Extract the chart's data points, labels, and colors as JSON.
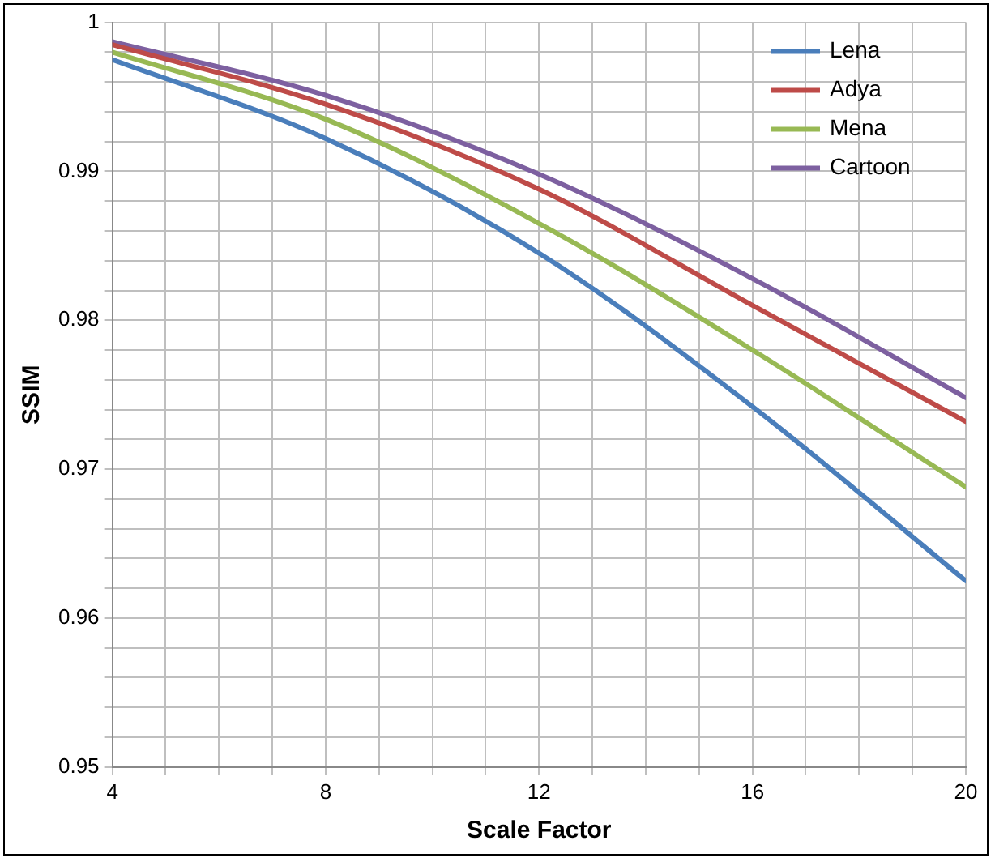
{
  "chart_data": {
    "type": "line",
    "xlabel": "Scale Factor",
    "ylabel": "SSIM",
    "x": [
      4,
      8,
      12,
      16,
      20
    ],
    "xlim": [
      4,
      20
    ],
    "xticks": [
      4,
      {
        "value": 5,
        "label": null
      },
      {
        "value": 6,
        "label": null
      },
      {
        "value": 7,
        "label": null
      },
      8,
      {
        "value": 9,
        "label": null
      },
      {
        "value": 10,
        "label": null
      },
      {
        "value": 11,
        "label": null
      },
      12,
      {
        "value": 13,
        "label": null
      },
      {
        "value": 14,
        "label": null
      },
      {
        "value": 15,
        "label": null
      },
      16,
      {
        "value": 17,
        "label": null
      },
      {
        "value": 18,
        "label": null
      },
      {
        "value": 19,
        "label": null
      },
      20
    ],
    "ylim": [
      0.95,
      1
    ],
    "yticks": [
      0.95,
      {
        "value": 0.952,
        "label": null
      },
      {
        "value": 0.954,
        "label": null
      },
      {
        "value": 0.956,
        "label": null
      },
      {
        "value": 0.958,
        "label": null
      },
      0.96,
      {
        "value": 0.962,
        "label": null
      },
      {
        "value": 0.964,
        "label": null
      },
      {
        "value": 0.966,
        "label": null
      },
      {
        "value": 0.968,
        "label": null
      },
      0.97,
      {
        "value": 0.972,
        "label": null
      },
      {
        "value": 0.974,
        "label": null
      },
      {
        "value": 0.976,
        "label": null
      },
      {
        "value": 0.978,
        "label": null
      },
      0.98,
      {
        "value": 0.982,
        "label": null
      },
      {
        "value": 0.984,
        "label": null
      },
      {
        "value": 0.986,
        "label": null
      },
      {
        "value": 0.988,
        "label": null
      },
      0.99,
      {
        "value": 0.992,
        "label": null
      },
      {
        "value": 0.994,
        "label": null
      },
      {
        "value": 0.996,
        "label": null
      },
      {
        "value": 0.998,
        "label": null
      },
      1
    ],
    "grid": true,
    "legend": "top right",
    "marker": "none",
    "line_style": "solid",
    "series": [
      {
        "name": "Lena",
        "color": "#4a7ebb",
        "values": [
          0.9975,
          0.9922,
          0.9845,
          0.9742,
          0.9625
        ]
      },
      {
        "name": "Adya",
        "color": "#be4b48",
        "values": [
          0.9985,
          0.9945,
          0.9888,
          0.981,
          0.9732
        ]
      },
      {
        "name": "Mena",
        "color": "#98b954",
        "values": [
          0.998,
          0.9935,
          0.9865,
          0.978,
          0.9688
        ]
      },
      {
        "name": "Cartoon",
        "color": "#7d60a0",
        "values": [
          0.9987,
          0.9951,
          0.9898,
          0.9828,
          0.9748
        ]
      }
    ]
  }
}
